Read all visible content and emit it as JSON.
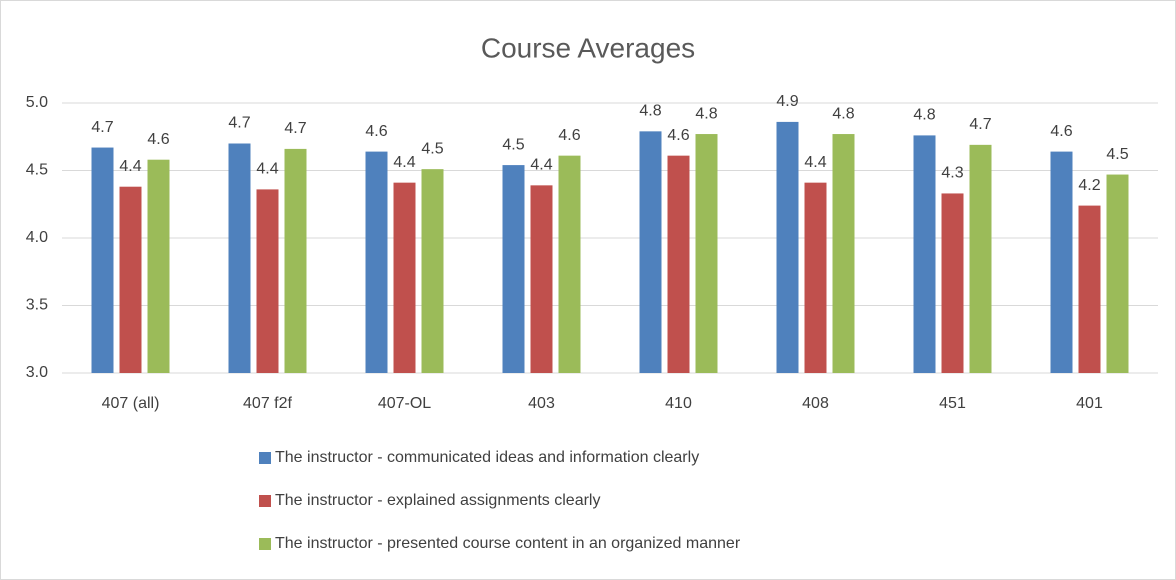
{
  "chart_data": {
    "type": "bar",
    "title": "Course Averages",
    "categories": [
      "407 (all)",
      "407 f2f",
      "407-OL",
      "403",
      "410",
      "408",
      "451",
      "401"
    ],
    "series": [
      {
        "name": "The instructor - communicated ideas and information clearly",
        "color": "#4f81bd",
        "values": [
          4.67,
          4.7,
          4.64,
          4.54,
          4.79,
          4.86,
          4.76,
          4.64
        ],
        "value_labels": [
          "4.7",
          "4.7",
          "4.6",
          "4.5",
          "4.8",
          "4.9",
          "4.8",
          "4.6"
        ]
      },
      {
        "name": "The instructor - explained assignments clearly",
        "color": "#c0504d",
        "values": [
          4.38,
          4.36,
          4.41,
          4.39,
          4.61,
          4.41,
          4.33,
          4.24
        ],
        "value_labels": [
          "4.4",
          "4.4",
          "4.4",
          "4.4",
          "4.6",
          "4.4",
          "4.3",
          "4.2"
        ]
      },
      {
        "name": "The instructor - presented course content in an organized manner",
        "color": "#9bbb59",
        "values": [
          4.58,
          4.66,
          4.51,
          4.61,
          4.77,
          4.77,
          4.69,
          4.47
        ],
        "value_labels": [
          "4.6",
          "4.7",
          "4.5",
          "4.6",
          "4.8",
          "4.8",
          "4.7",
          "4.5"
        ]
      }
    ],
    "ylim": [
      3.0,
      5.0
    ],
    "yticks": [
      {
        "value": 3,
        "label": "3.0"
      },
      3.5,
      {
        "value": 4,
        "label": "4.0"
      },
      4.5,
      {
        "value": 5,
        "label": "5.0"
      }
    ],
    "grid": true,
    "legend": "bottom"
  }
}
